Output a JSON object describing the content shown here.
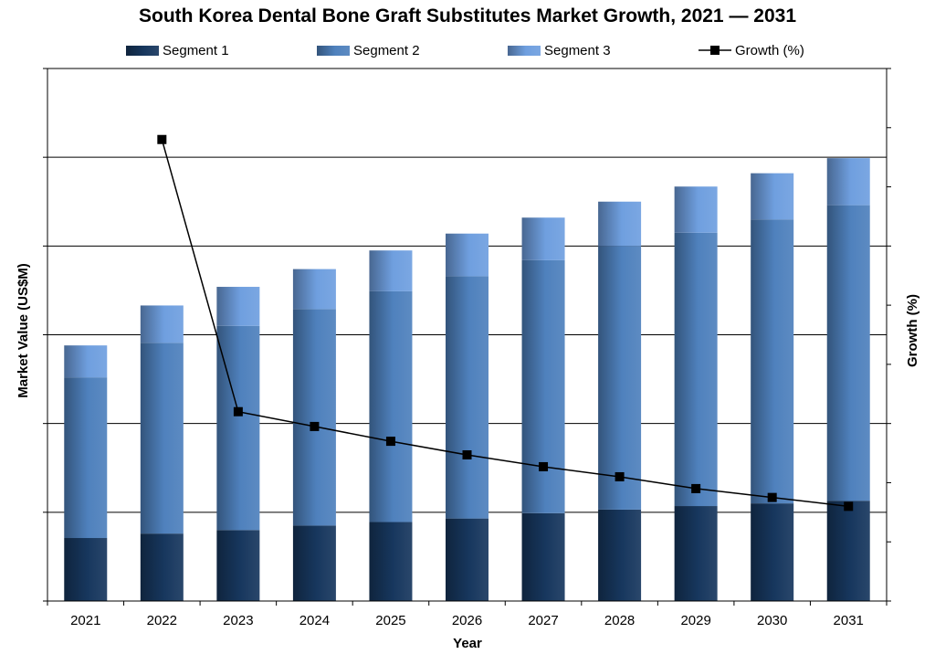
{
  "chart_data": {
    "type": "bar",
    "title": "South Korea Dental Bone Graft Substitutes Market Growth, 2021 — 2031",
    "xlabel": "Year",
    "ylabel": "Market Value (US$M)",
    "y2label": "Growth (%)",
    "categories": [
      "2021",
      "2022",
      "2023",
      "2024",
      "2025",
      "2026",
      "2027",
      "2028",
      "2029",
      "2030",
      "2031"
    ],
    "stacked": true,
    "ylim": [
      0,
      6
    ],
    "y2lim": [
      0,
      9
    ],
    "grid": true,
    "legend_position": "top",
    "series": [
      {
        "name": "Segment 1",
        "type": "bar",
        "color": "#17375e",
        "values": [
          0.71,
          0.76,
          0.8,
          0.85,
          0.89,
          0.93,
          0.99,
          1.03,
          1.07,
          1.1,
          1.13
        ]
      },
      {
        "name": "Segment 2",
        "type": "bar",
        "color": "#4f81bd",
        "values": [
          1.81,
          2.15,
          2.3,
          2.44,
          2.6,
          2.73,
          2.85,
          2.97,
          3.08,
          3.2,
          3.33
        ]
      },
      {
        "name": "Segment 3",
        "type": "bar",
        "color": "#6f9fdf",
        "values": [
          0.36,
          0.42,
          0.44,
          0.45,
          0.46,
          0.48,
          0.48,
          0.5,
          0.52,
          0.52,
          0.53
        ]
      },
      {
        "name": "Growth (%)",
        "type": "line",
        "axis": "right",
        "color": "#000000",
        "values": [
          null,
          7.8,
          3.2,
          2.95,
          2.7,
          2.47,
          2.27,
          2.1,
          1.9,
          1.75,
          1.6
        ]
      }
    ]
  }
}
